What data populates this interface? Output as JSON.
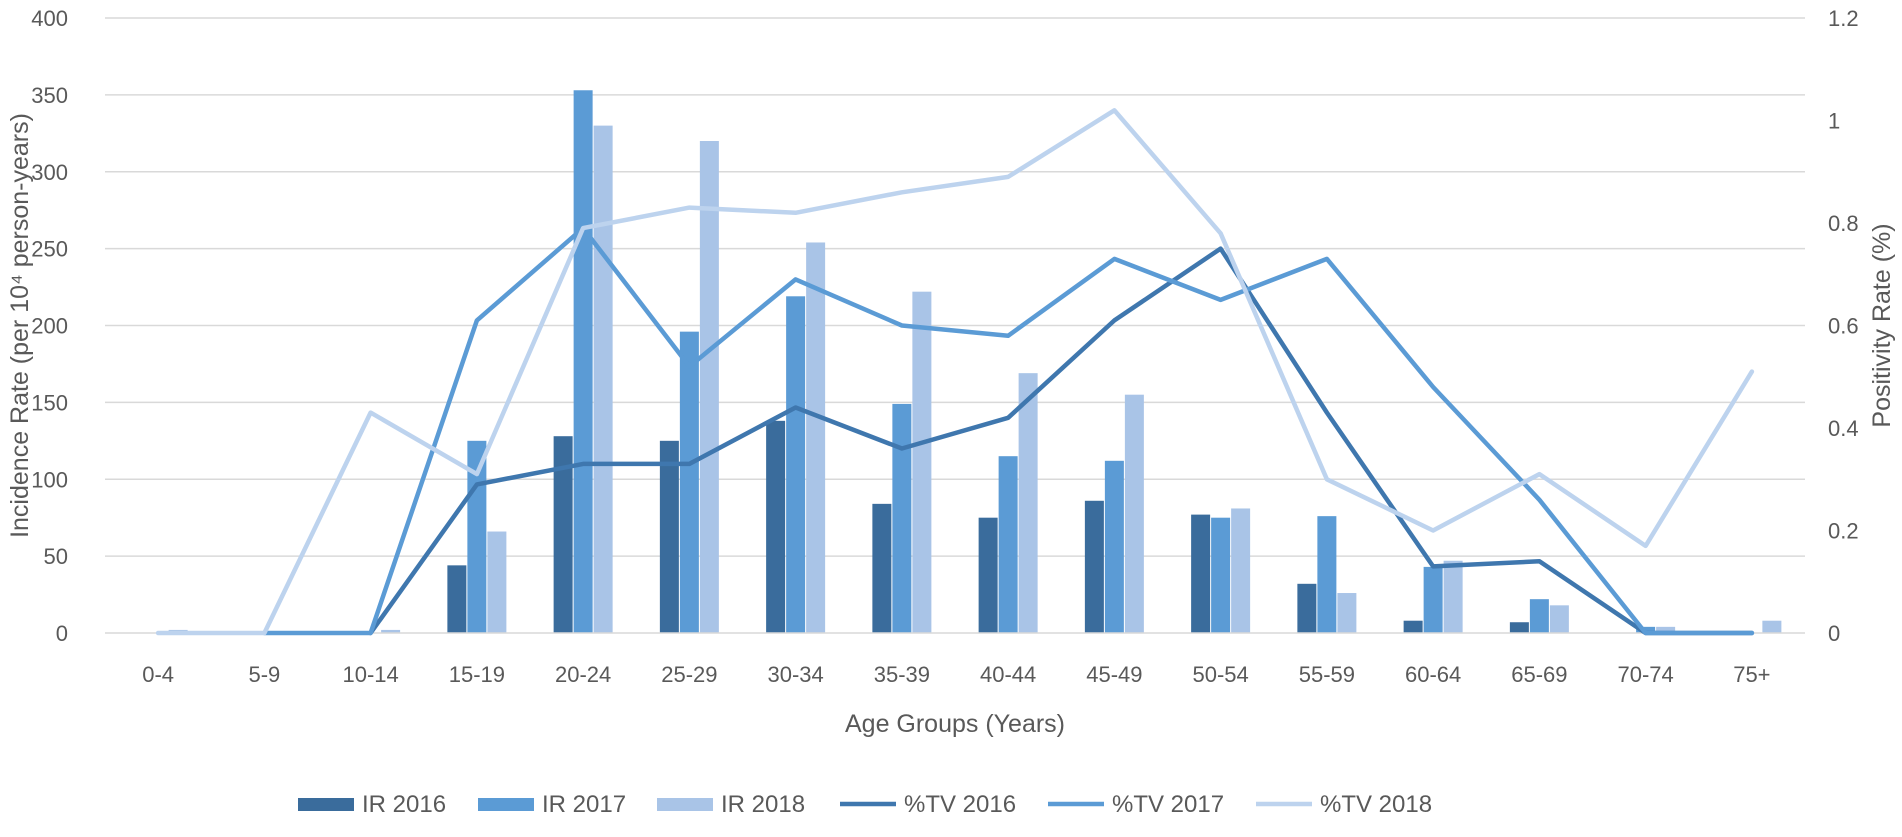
{
  "chart_data": {
    "type": "bar",
    "title": "",
    "xlabel": "Age Groups (Years)",
    "ylabel": "Incidence Rate (per 10⁴ person-years)",
    "y2label": "Positivity Rate (%)",
    "ylim": [
      0,
      400
    ],
    "y2lim": [
      0,
      1.2
    ],
    "yticks": [
      "0",
      "50",
      "100",
      "150",
      "200",
      "250",
      "300",
      "350",
      "400"
    ],
    "y2ticks": [
      "0",
      "0.2",
      "0.4",
      "0.6",
      "0.8",
      "1",
      "1.2"
    ],
    "grid": true,
    "legend_position": "bottom",
    "categories": [
      "0-4",
      "5-9",
      "10-14",
      "15-19",
      "20-24",
      "25-29",
      "30-34",
      "35-39",
      "40-44",
      "45-49",
      "50-54",
      "55-59",
      "60-64",
      "65-69",
      "70-74",
      "75+"
    ],
    "bar_series": [
      {
        "name": "IR 2016",
        "color": "#3a6c9c",
        "values": [
          0,
          0,
          0,
          44,
          128,
          125,
          138,
          84,
          75,
          86,
          77,
          32,
          8,
          7,
          0,
          0
        ]
      },
      {
        "name": "IR 2017",
        "color": "#5b9bd5",
        "values": [
          0,
          0,
          0,
          125,
          353,
          196,
          219,
          149,
          115,
          112,
          75,
          76,
          43,
          22,
          4,
          0
        ]
      },
      {
        "name": "IR 2018",
        "color": "#a9c4e7",
        "values": [
          2,
          0,
          2,
          66,
          330,
          320,
          254,
          222,
          169,
          155,
          81,
          26,
          47,
          18,
          4,
          8
        ]
      }
    ],
    "line_series": [
      {
        "name": "%TV 2016",
        "color": "#3f77ae",
        "axis": "y2",
        "values": [
          null,
          null,
          0,
          0.29,
          0.33,
          0.33,
          0.44,
          0.36,
          0.42,
          0.61,
          0.75,
          0.43,
          0.13,
          0.14,
          0,
          0
        ]
      },
      {
        "name": "%TV 2017",
        "color": "#5b9bd5",
        "axis": "y2",
        "values": [
          null,
          0,
          0,
          0.61,
          0.79,
          0.52,
          0.69,
          0.6,
          0.58,
          0.73,
          0.65,
          0.73,
          0.48,
          0.26,
          0,
          0
        ]
      },
      {
        "name": "%TV 2018",
        "color": "#bdd3ee",
        "axis": "y2",
        "values": [
          0,
          0,
          0.43,
          0.31,
          0.79,
          0.83,
          0.82,
          0.86,
          0.89,
          1.02,
          0.78,
          0.3,
          0.2,
          0.31,
          0.17,
          0.51
        ]
      }
    ]
  }
}
